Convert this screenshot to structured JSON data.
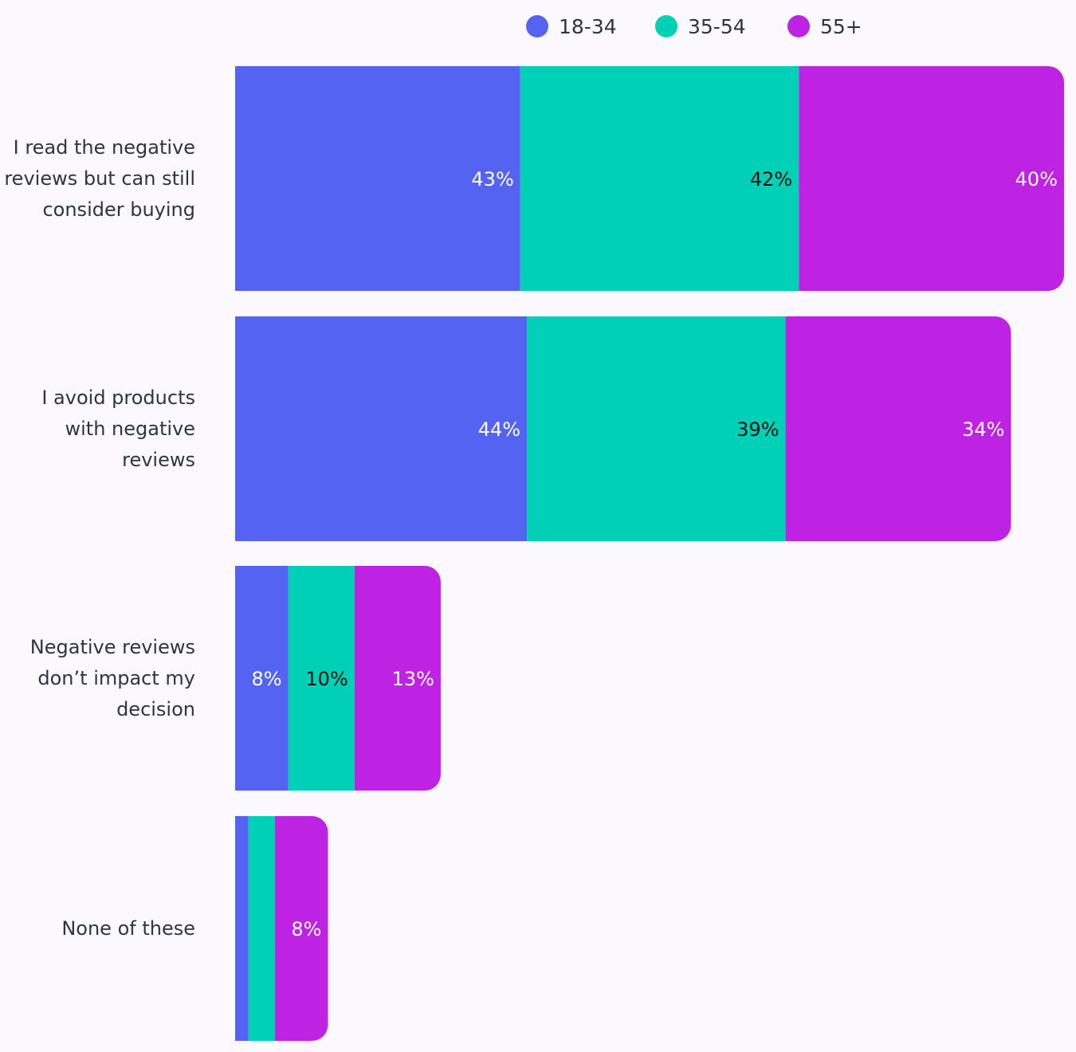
{
  "chart_data": {
    "type": "bar",
    "orientation": "horizontal",
    "stacked": true,
    "title": "",
    "xlabel": "",
    "ylabel": "",
    "grid": false,
    "legend_position": "top",
    "categories": [
      [
        "I read the negative",
        "reviews but can still",
        "consider buying"
      ],
      [
        "I avoid products",
        "with negative",
        "reviews"
      ],
      [
        "Negative reviews",
        "don’t impact my",
        "decision"
      ],
      [
        "None of these"
      ]
    ],
    "series": [
      {
        "name": "18-34",
        "color": "#5563F2",
        "label_color": "#FFFFFF",
        "values": [
          43,
          44,
          8,
          2
        ]
      },
      {
        "name": "35-54",
        "color": "#00D0B5",
        "label_color": "#111111",
        "values": [
          42,
          39,
          10,
          4
        ]
      },
      {
        "name": "55+",
        "color": "#BE22E2",
        "label_color": "#FFFFFF",
        "values": [
          40,
          34,
          13,
          8
        ]
      }
    ],
    "data_labels": [
      [
        "43%",
        "44%",
        "8%",
        ""
      ],
      [
        "42%",
        "39%",
        "10%",
        ""
      ],
      [
        "40%",
        "34%",
        "13%",
        "8%"
      ]
    ]
  }
}
